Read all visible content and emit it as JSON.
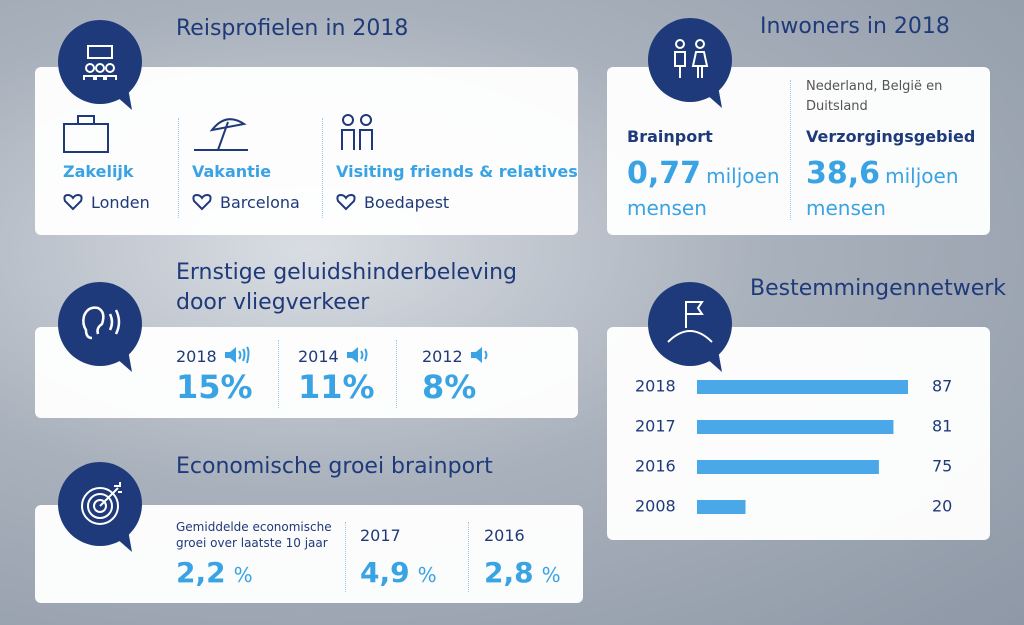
{
  "reisprofielen": {
    "title": "Reisprofielen in 2018",
    "profiles": [
      {
        "type": "Zakelijk",
        "city": "Londen"
      },
      {
        "type": "Vakantie",
        "city": "Barcelona"
      },
      {
        "type": "Visiting friends & relatives",
        "city": "Boedapest"
      }
    ]
  },
  "inwoners": {
    "title": "Inwoners in 2018",
    "brainport": {
      "label": "Brainport",
      "value": "0,77",
      "unit": "miljoen",
      "unit2": "mensen"
    },
    "verzorgingsgebied": {
      "note": "Nederland, België en Duitsland",
      "label": "Verzorgingsgebied",
      "value": "38,6",
      "unit": "miljoen",
      "unit2": "mensen"
    }
  },
  "geluidshinder": {
    "title_line1": "Ernstige geluidshinderbeleving",
    "title_line2": "door vliegverkeer",
    "items": [
      {
        "year": "2018",
        "value": "15%"
      },
      {
        "year": "2014",
        "value": "11%"
      },
      {
        "year": "2012",
        "value": "8%"
      }
    ]
  },
  "economische_groei": {
    "title": "Economische groei brainport",
    "items": [
      {
        "label": "Gemiddelde economische groei over laatste 10 jaar",
        "value": "2,2",
        "unit": "%"
      },
      {
        "label": "2017",
        "value": "4,9",
        "unit": "%"
      },
      {
        "label": "2016",
        "value": "2,8",
        "unit": "%"
      }
    ]
  },
  "bestemmingennetwerk": {
    "type": "bar",
    "title": "Bestemmingennetwerk",
    "categories": [
      "2018",
      "2017",
      "2016",
      "2008"
    ],
    "values": [
      87,
      81,
      75,
      20
    ],
    "color": "#4aa8e8"
  }
}
